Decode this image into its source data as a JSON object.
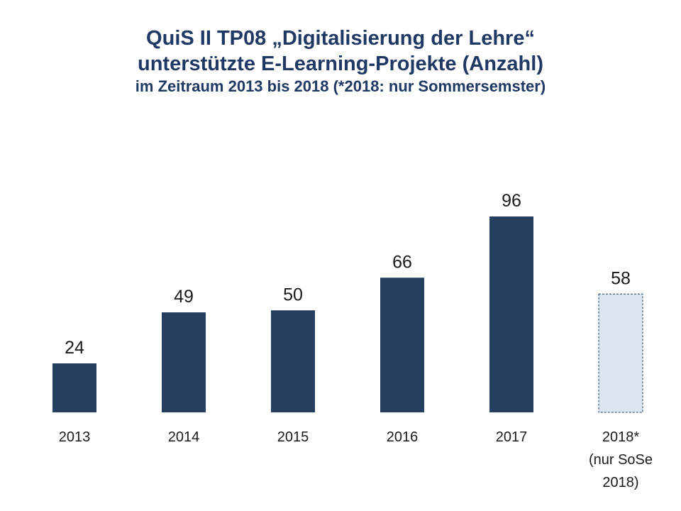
{
  "chart_data": {
    "type": "bar",
    "title_lines": [
      "QuiS II TP08 „Digitalisierung der Lehre“",
      "unterstützte E-Learning-Projekte (Anzahl)",
      "im Zeitraum 2013 bis 2018 (*2018: nur Sommersemster)"
    ],
    "categories": [
      [
        "2013"
      ],
      [
        "2014"
      ],
      [
        "2015"
      ],
      [
        "2016"
      ],
      [
        "2017"
      ],
      [
        "2018*",
        "(nur SoSe",
        "2018)"
      ]
    ],
    "values": [
      24,
      49,
      50,
      66,
      96,
      58
    ],
    "highlight_last_partial": true,
    "colors": {
      "bar": "#243f5f",
      "partial_bar_fill": "#dce6f2",
      "partial_bar_stroke": "#243f5f",
      "title": "#1f3864"
    },
    "ylim": [
      0,
      100
    ],
    "grid": false,
    "legend": "none"
  }
}
